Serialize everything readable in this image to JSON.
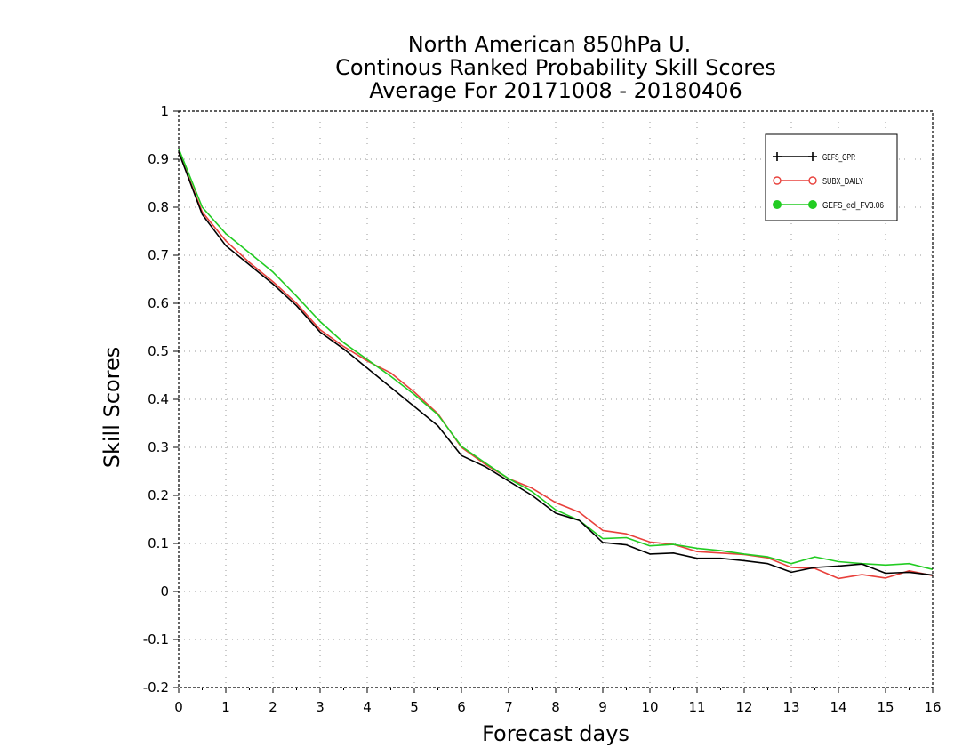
{
  "chart_data": {
    "type": "line",
    "title": [
      "North American 850hPa U.",
      "Continous Ranked Probability Skill Scores",
      "Average For 20171008 - 20180406"
    ],
    "xlabel": "Forecast days",
    "ylabel": "Skill Scores",
    "xlim": [
      0,
      16
    ],
    "ylim": [
      -0.2,
      1
    ],
    "xticks": [
      0,
      1,
      2,
      3,
      4,
      5,
      6,
      7,
      8,
      9,
      10,
      11,
      12,
      13,
      14,
      15,
      16
    ],
    "yticks": [
      -0.2,
      -0.1,
      0,
      0.1,
      0.2,
      0.3,
      0.4,
      0.5,
      0.6,
      0.7,
      0.8,
      0.9,
      1
    ],
    "ytick_labels": [
      "-0.2",
      "-0.1",
      "0",
      "0.1",
      "0.2",
      "0.3",
      "0.4",
      "0.5",
      "0.6",
      "0.7",
      "0.8",
      "0.9",
      "1"
    ],
    "grid": true,
    "legend_position": "top-right",
    "x": [
      0,
      0.5,
      1,
      1.5,
      2,
      2.5,
      3,
      3.5,
      4,
      4.5,
      5,
      5.5,
      6,
      6.5,
      7,
      7.5,
      8,
      8.5,
      9,
      9.5,
      10,
      10.5,
      11,
      11.5,
      12,
      12.5,
      13,
      13.5,
      14,
      14.5,
      15,
      15.5,
      16
    ],
    "series": [
      {
        "name": "GEFS_OPR",
        "color": "#000000",
        "marker": "plus",
        "values": [
          0.915,
          0.785,
          0.72,
          0.68,
          0.64,
          0.595,
          0.54,
          0.505,
          0.465,
          0.425,
          0.385,
          0.345,
          0.283,
          0.26,
          0.23,
          0.2,
          0.163,
          0.148,
          0.102,
          0.097,
          0.078,
          0.08,
          0.069,
          0.069,
          0.064,
          0.058,
          0.04,
          0.05,
          0.053,
          0.057,
          0.038,
          0.04,
          0.034
        ]
      },
      {
        "name": "SUBX_DAILY",
        "color": "#e8413c",
        "marker": "open-circle",
        "values": [
          0.915,
          0.79,
          0.73,
          0.685,
          0.645,
          0.6,
          0.545,
          0.51,
          0.48,
          0.455,
          0.415,
          0.37,
          0.3,
          0.265,
          0.235,
          0.215,
          0.185,
          0.165,
          0.127,
          0.12,
          0.103,
          0.098,
          0.083,
          0.08,
          0.077,
          0.07,
          0.05,
          0.048,
          0.027,
          0.035,
          0.028,
          0.043,
          0.033
        ]
      },
      {
        "name": "GEFS_ecl_FV3.06",
        "color": "#22cc22",
        "marker": "filled-circle",
        "values": [
          0.922,
          0.8,
          0.745,
          0.705,
          0.665,
          0.615,
          0.562,
          0.518,
          0.483,
          0.448,
          0.41,
          0.368,
          0.302,
          0.268,
          0.235,
          0.208,
          0.17,
          0.148,
          0.11,
          0.112,
          0.095,
          0.098,
          0.09,
          0.085,
          0.078,
          0.072,
          0.058,
          0.072,
          0.062,
          0.058,
          0.055,
          0.058,
          0.046
        ]
      }
    ]
  }
}
